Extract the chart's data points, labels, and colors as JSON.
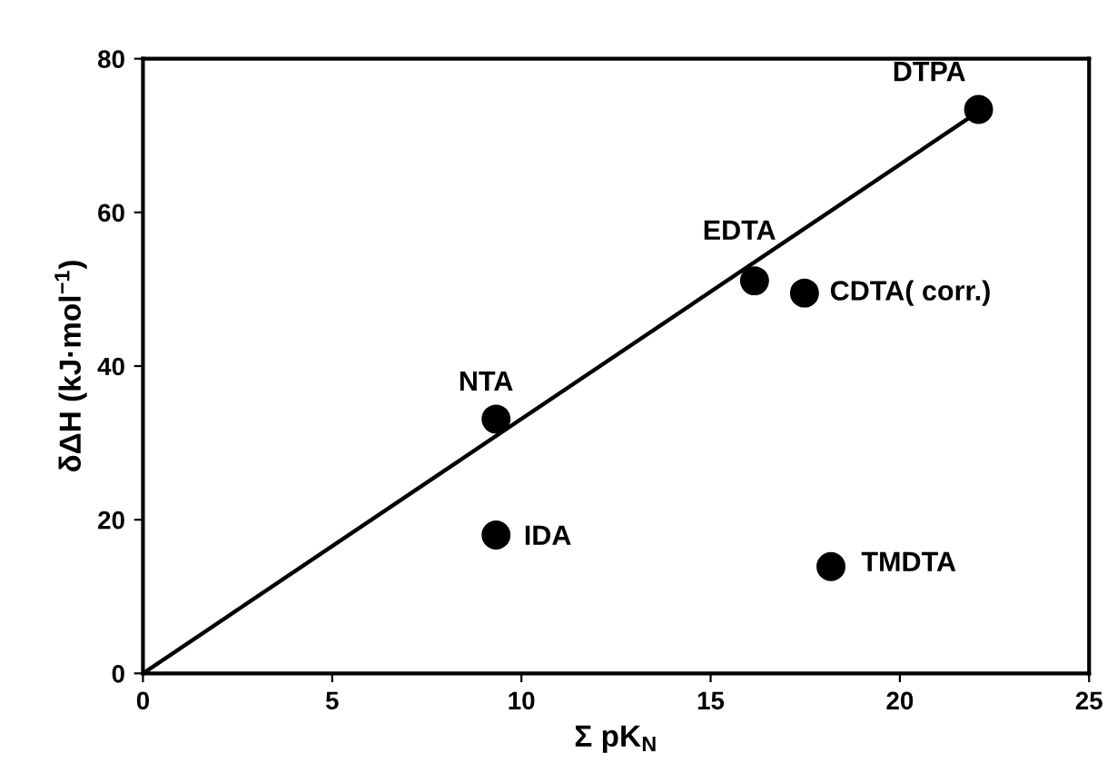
{
  "chart_data": {
    "type": "scatter",
    "xlabel": "Σ pK$_{N}$",
    "ylabel": "δΔH (kJ·mol$^{−1}$)",
    "xlim": [
      0,
      25
    ],
    "ylim": [
      0,
      80
    ],
    "xticks": [
      0,
      5,
      10,
      15,
      20,
      25
    ],
    "yticks": [
      0,
      20,
      40,
      60,
      80
    ],
    "grid": false,
    "legend": false,
    "marker": "circle",
    "series": [
      {
        "color": "#000000",
        "x": [
          22.08,
          16.16,
          17.48,
          9.33,
          9.33,
          18.18
        ],
        "values": [
          73.4,
          51.1,
          49.5,
          33.1,
          18.0,
          13.9
        ]
      },
      {
        "type": "line",
        "color": "#000000",
        "x": [
          0,
          21.8
        ],
        "values": [
          0,
          72.2
        ],
        "line_style": "solid",
        "marker": "none"
      }
    ],
    "annotations": [
      {
        "text": "DTPA",
        "x": 22.08,
        "y": 73.4
      },
      {
        "text": "EDTA",
        "x": 16.16,
        "y": 51.1
      },
      {
        "text": "CDTA( corr.)",
        "x": 17.48,
        "y": 49.5
      },
      {
        "text": "NTA",
        "x": 9.33,
        "y": 33.1
      },
      {
        "text": "IDA",
        "x": 9.33,
        "y": 18.0
      },
      {
        "text": "TMDTA",
        "x": 18.18,
        "y": 13.9
      }
    ]
  }
}
